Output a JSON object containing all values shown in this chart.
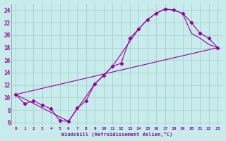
{
  "xlabel": "Windchill (Refroidissement éolien,°C)",
  "background_color": "#c8ecec",
  "grid_color": "#aad4d4",
  "line_color": "#990099",
  "xlim": [
    -0.5,
    23.5
  ],
  "ylim": [
    5.5,
    25.0
  ],
  "yticks": [
    6,
    8,
    10,
    12,
    14,
    16,
    18,
    20,
    22,
    24
  ],
  "xticks": [
    0,
    1,
    2,
    3,
    4,
    5,
    6,
    7,
    8,
    9,
    10,
    11,
    12,
    13,
    14,
    15,
    16,
    17,
    18,
    19,
    20,
    21,
    22,
    23
  ],
  "curve1_x": [
    0,
    1,
    2,
    3,
    4,
    5,
    6,
    7,
    8,
    9,
    10,
    11,
    12,
    13,
    14,
    15,
    16,
    17,
    18,
    19,
    20,
    21,
    22,
    23
  ],
  "curve1_y": [
    10.5,
    9.0,
    9.5,
    8.8,
    8.2,
    6.3,
    6.2,
    8.3,
    9.5,
    12.2,
    13.5,
    15.0,
    15.5,
    19.5,
    21.0,
    22.5,
    23.5,
    24.2,
    24.0,
    23.5,
    22.0,
    20.3,
    19.5,
    18.0
  ],
  "curve2_x": [
    0,
    6,
    9,
    11,
    14,
    15,
    16,
    17,
    18,
    19,
    20,
    21,
    22,
    23
  ],
  "curve2_y": [
    10.5,
    6.2,
    12.2,
    15.0,
    21.0,
    22.5,
    23.5,
    24.2,
    24.0,
    23.5,
    20.3,
    19.5,
    18.5,
    18.0
  ],
  "curve3_x": [
    0,
    23
  ],
  "curve3_y": [
    10.5,
    18.0
  ]
}
